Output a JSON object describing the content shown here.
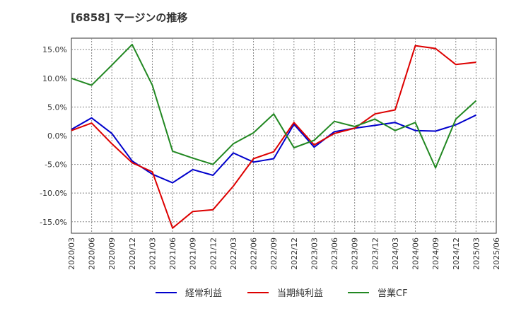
{
  "chart_data": {
    "type": "line",
    "title": "[6858]  マージンの推移",
    "x": [
      "2020/03",
      "2020/06",
      "2020/09",
      "2020/12",
      "2021/03",
      "2021/06",
      "2021/09",
      "2021/12",
      "2022/03",
      "2022/06",
      "2022/09",
      "2022/12",
      "2023/03",
      "2023/06",
      "2023/09",
      "2023/12",
      "2024/03",
      "2024/06",
      "2024/09",
      "2024/12",
      "2025/03",
      "2025/06"
    ],
    "ylim": [
      -17,
      17
    ],
    "yticks": [
      15,
      10,
      5,
      0,
      -5,
      -10,
      -15
    ],
    "ytick_labels": [
      "15.0%",
      "10.0%",
      "5.0%",
      "0.0%",
      "-5.0%",
      "-10.0%",
      "-15.0%"
    ],
    "grid": true,
    "legend_position": "bottom",
    "series": [
      {
        "name": "経常利益",
        "color": "#0000cc",
        "values": [
          1.1,
          3.1,
          0.4,
          -4.4,
          -6.7,
          -8.2,
          -5.9,
          -6.9,
          -3.0,
          -4.6,
          -4.0,
          2.0,
          -2.0,
          0.7,
          1.3,
          1.8,
          2.3,
          0.9,
          0.8,
          1.9,
          3.6,
          null
        ]
      },
      {
        "name": "当期純利益",
        "color": "#dd0000",
        "values": [
          0.9,
          2.2,
          -1.4,
          -4.7,
          -6.3,
          -16.1,
          -13.2,
          -12.9,
          -8.8,
          -4.0,
          -2.8,
          2.3,
          -1.6,
          0.4,
          1.3,
          3.8,
          4.5,
          15.7,
          15.2,
          12.4,
          12.8,
          null
        ]
      },
      {
        "name": "営業CF",
        "color": "#228822",
        "values": [
          10.0,
          8.8,
          12.3,
          15.9,
          8.8,
          -2.7,
          -3.9,
          -5.0,
          -1.4,
          0.5,
          3.8,
          -2.1,
          -0.8,
          2.5,
          1.6,
          2.9,
          0.9,
          2.3,
          -5.6,
          2.9,
          6.1,
          null
        ]
      }
    ]
  }
}
